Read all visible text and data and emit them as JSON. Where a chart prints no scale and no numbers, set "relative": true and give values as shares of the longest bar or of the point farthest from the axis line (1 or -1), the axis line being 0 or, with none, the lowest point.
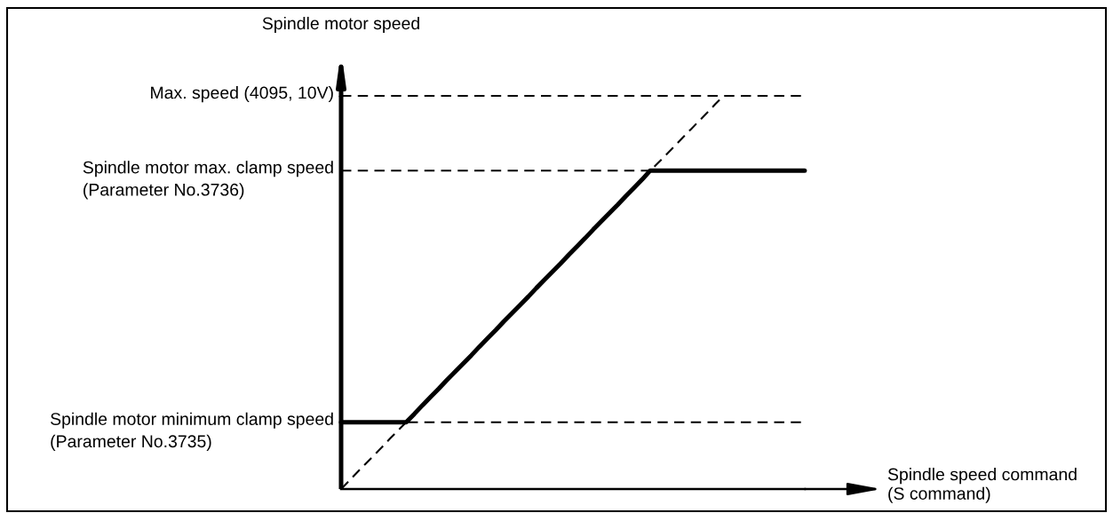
{
  "chart_data": {
    "type": "line",
    "relative": true,
    "ylabel": "Spindle motor speed",
    "xlabel": "Spindle speed command\n(S command)",
    "categories": [
      null,
      null,
      null,
      null,
      null,
      null,
      null,
      null,
      null,
      null,
      null,
      null,
      null,
      null,
      null,
      null,
      null,
      null,
      null,
      null,
      null,
      null,
      null,
      null,
      null,
      null,
      null,
      null,
      null,
      null,
      null,
      null,
      null,
      null,
      null,
      null,
      null,
      null,
      null,
      null,
      null,
      null,
      null,
      null,
      null,
      null,
      null,
      null,
      null,
      null,
      null,
      null,
      null,
      null,
      null,
      null,
      null,
      null
    ],
    "series": [
      {
        "color": "#000000",
        "line_style": "solid",
        "values": [
          0.17,
          0.17,
          0.17,
          0.17,
          0.17,
          0.17,
          0.17,
          0.17,
          0.17,
          0.191,
          0.213,
          0.234,
          0.255,
          0.277,
          0.298,
          0.319,
          0.34,
          0.362,
          0.383,
          0.404,
          0.426,
          0.447,
          0.468,
          0.489,
          0.511,
          0.532,
          0.553,
          0.574,
          0.596,
          0.617,
          0.638,
          0.66,
          0.681,
          0.702,
          0.723,
          0.745,
          0.766,
          0.787,
          0.81,
          0.81,
          0.81,
          0.81,
          0.81,
          0.81,
          0.81,
          0.81,
          0.81,
          0.81,
          0.81,
          0.81,
          0.81,
          0.81,
          0.81,
          0.81,
          0.81,
          0.81,
          0.81,
          0.81
        ]
      },
      {
        "color": "#000000",
        "line_style": "dashed",
        "values": [
          0,
          0.021,
          0.043,
          0.064,
          0.085,
          0.106,
          0.128,
          0.149,
          0.17,
          0.191,
          0.213,
          0.234,
          0.255,
          0.277,
          0.298,
          0.319,
          0.34,
          0.362,
          0.383,
          0.404,
          0.426,
          0.447,
          0.468,
          0.489,
          0.511,
          0.532,
          0.553,
          0.574,
          0.596,
          0.617,
          0.638,
          0.66,
          0.681,
          0.702,
          0.723,
          0.745,
          0.766,
          0.787,
          0.809,
          0.83,
          0.851,
          0.872,
          0.894,
          0.915,
          0.936,
          0.957,
          0.979,
          1,
          null,
          null,
          null,
          null,
          null,
          null,
          null,
          null,
          null,
          null
        ]
      }
    ],
    "ref_lines": [
      {
        "axis": "y",
        "value": 1,
        "label": "Max. speed (4095, 10V)",
        "color": "#000000",
        "line_style": "dashed"
      },
      {
        "axis": "y",
        "value": 0.81,
        "label": "Spindle motor max. clamp speed\n(Parameter No.3736)",
        "color": "#000000",
        "line_style": "dashed"
      },
      {
        "axis": "y",
        "value": 0.17,
        "label": "Spindle motor minimum clamp speed\n(Parameter No.3735)",
        "color": "#000000",
        "line_style": "dashed"
      }
    ]
  }
}
